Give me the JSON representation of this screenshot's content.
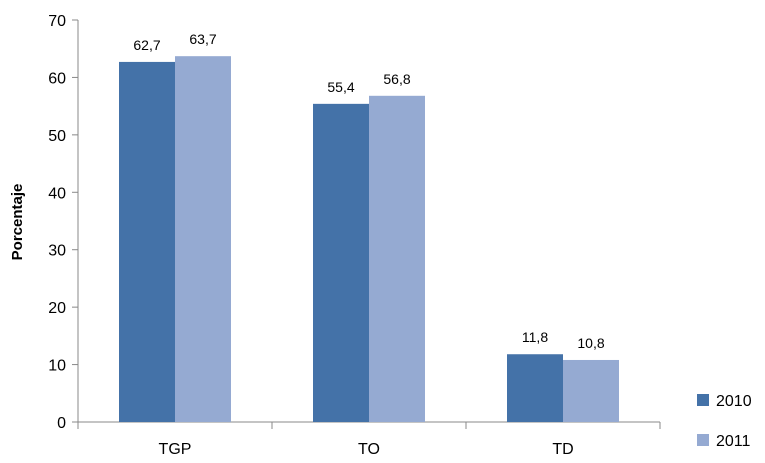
{
  "chart_data": {
    "type": "bar",
    "title": "",
    "xlabel": "",
    "ylabel": "Porcentaje",
    "categories": [
      "TGP",
      "TO",
      "TD"
    ],
    "series": [
      {
        "name": "2010",
        "values": [
          62.7,
          55.4,
          11.8
        ],
        "labels": [
          "62,7",
          "55,4",
          "11,8"
        ],
        "color": "#4472A8"
      },
      {
        "name": "2011",
        "values": [
          63.7,
          56.8,
          10.8
        ],
        "labels": [
          "63,7",
          "56,8",
          "10,8"
        ],
        "color": "#95AAD2"
      }
    ],
    "ylim": [
      0,
      70
    ],
    "yticks": [
      0,
      10,
      20,
      30,
      40,
      50,
      60,
      70
    ],
    "grid": false,
    "legend_position": "bottom-right"
  }
}
